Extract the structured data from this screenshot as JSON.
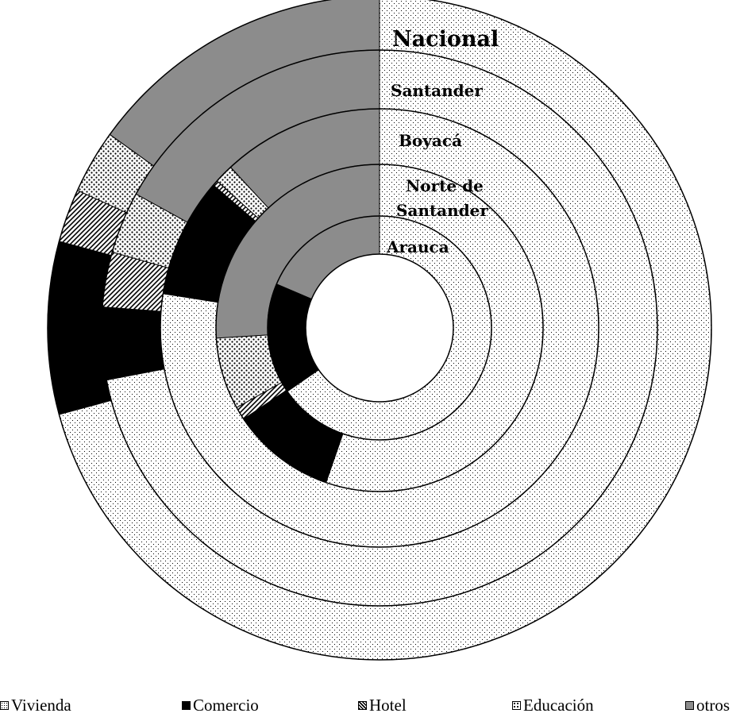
{
  "chart_data": {
    "type": "pie",
    "subtype": "multi-level-doughnut",
    "categories": [
      "Vivienda",
      "Comercio",
      "Hotel",
      "Educación",
      "otros"
    ],
    "rings": [
      {
        "name": "Nacional",
        "values": [
          70.8,
          8.4,
          2.6,
          3.1,
          15.1
        ]
      },
      {
        "name": "Santander",
        "values": [
          72.0,
          4.2,
          3.2,
          3.6,
          17.0
        ]
      },
      {
        "name": "Boyacá",
        "values": [
          77.5,
          8.8,
          0.4,
          1.4,
          11.9
        ]
      },
      {
        "name": "Norte de Santander",
        "values": [
          55.3,
          10.3,
          1.3,
          7.1,
          26.0
        ]
      },
      {
        "name": "Arauca",
        "values": [
          65.4,
          16.0,
          0.0,
          0.0,
          18.6
        ]
      }
    ],
    "fills": {
      "Vivienda": "#f1f1f1",
      "Comercio": "#000000",
      "Hotel": "#d2d2d2",
      "Educación": "#dcdcdc",
      "otros": "#8c8c8c"
    },
    "legend_position": "bottom",
    "legend_labels": {
      "vivienda": "Vivienda",
      "comercio": "Comercio",
      "hotel": "Hotel",
      "educacion": "Educación",
      "otros": "otros"
    },
    "ring_labels": {
      "nacional": "Nacional",
      "santander": "Santander",
      "boyaca": "Boyacá",
      "norte_line1": "Norte de",
      "norte_line2": "Santander",
      "arauca": "Arauca"
    }
  }
}
